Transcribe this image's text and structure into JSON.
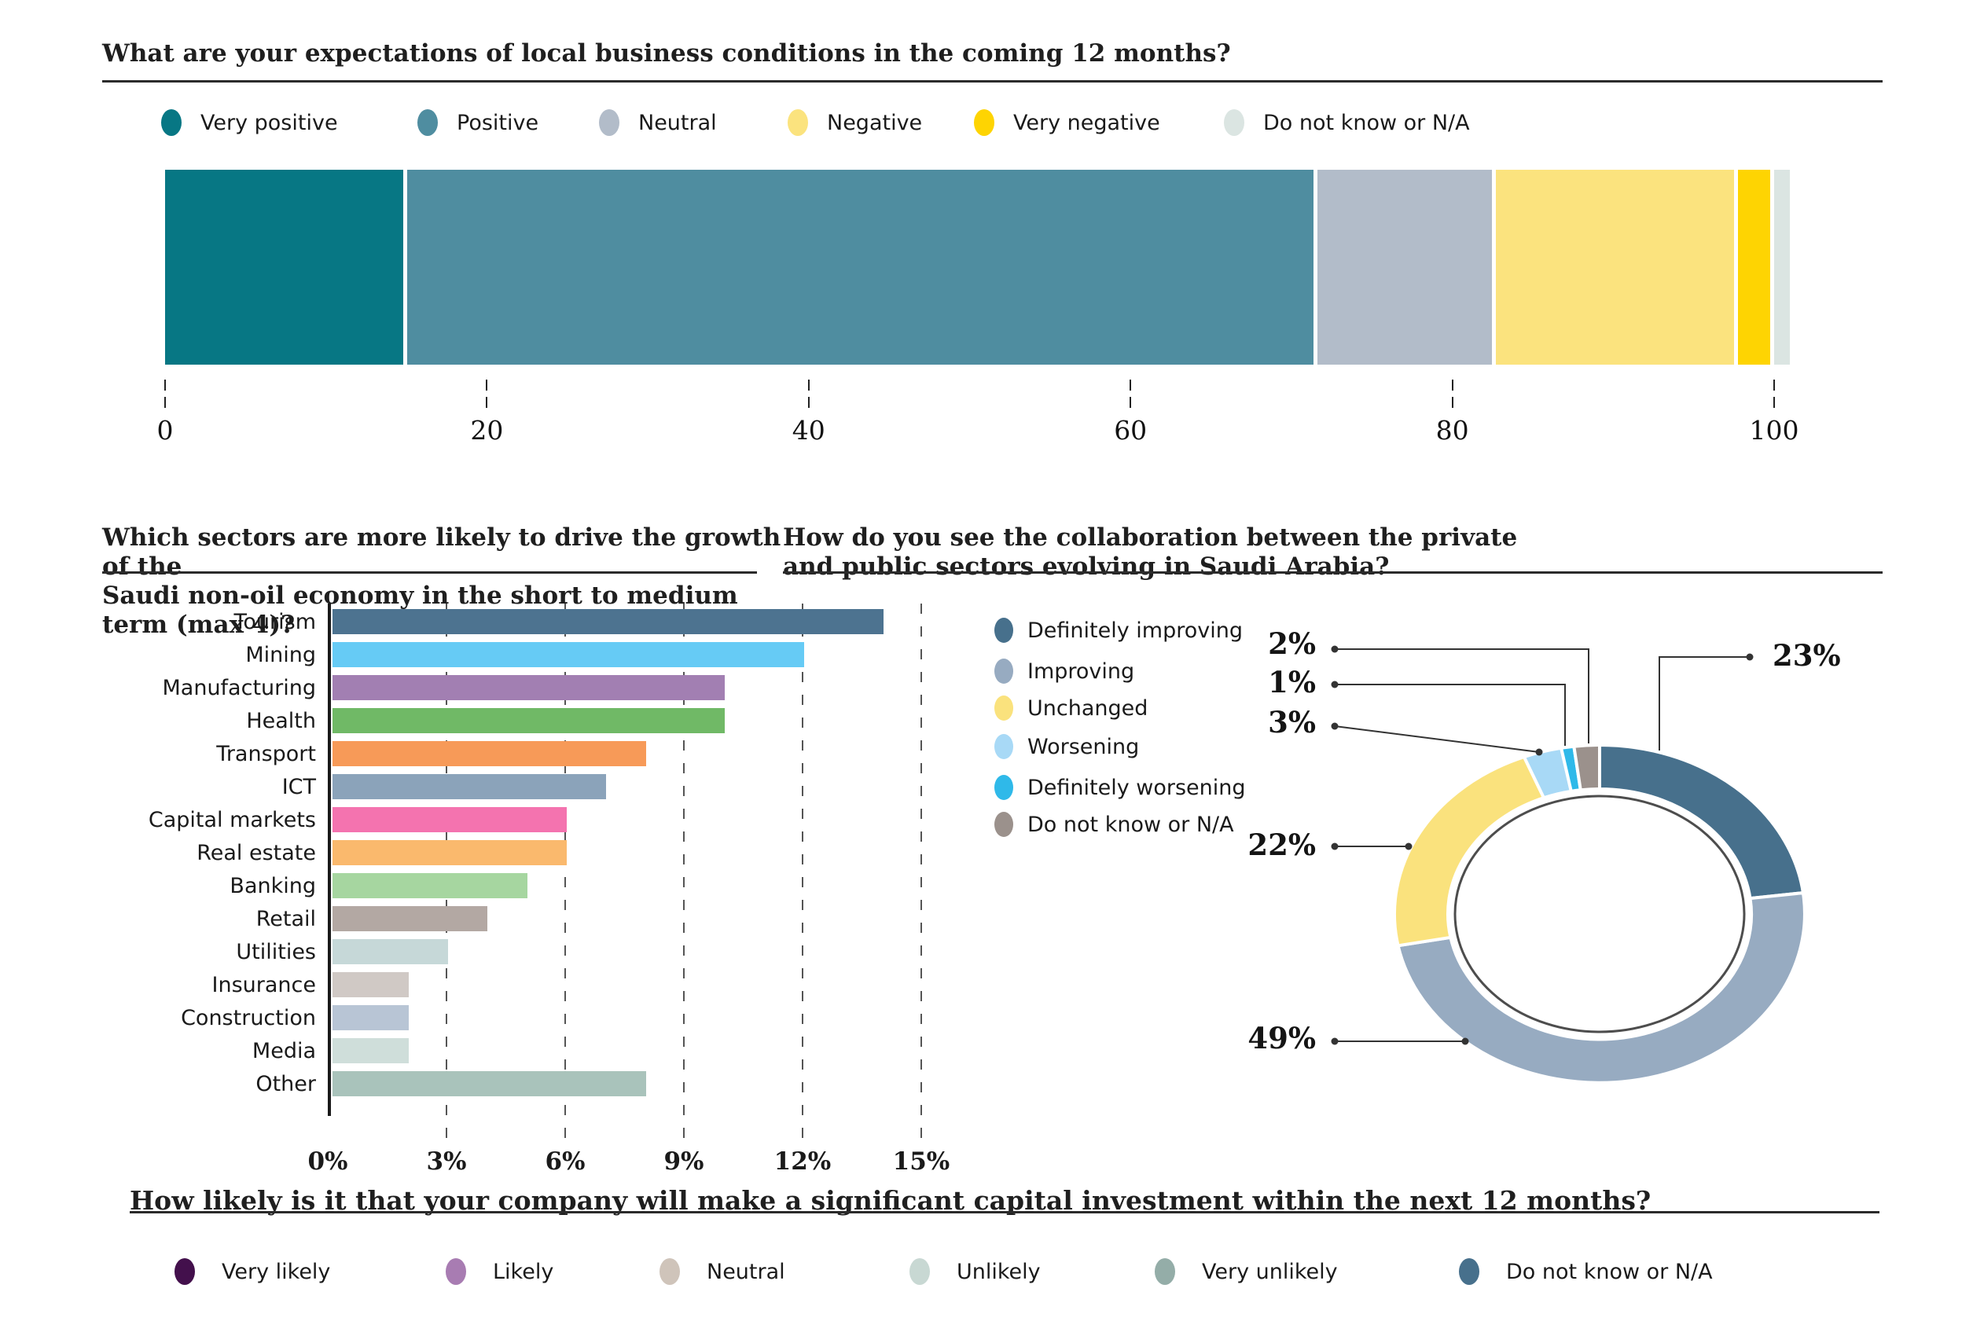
{
  "accent_colors": {
    "rule": "#2b2b2b",
    "axis": "#1a1a1a",
    "leader_line": "#333333"
  },
  "chart_data": [
    {
      "type": "bar",
      "subtype": "stacked_horizontal",
      "title": "What are your expectations of local business conditions in the coming 12 months?",
      "categories": [
        "Very positive",
        "Positive",
        "Neutral",
        "Negative",
        "Very negative",
        "Do not know or N/A"
      ],
      "values": [
        15,
        57,
        11,
        15,
        2,
        1
      ],
      "colors": [
        "#077784",
        "#4f8da0",
        "#b2bcc9",
        "#fbe37e",
        "#fed402",
        "#dbe5e2"
      ],
      "xlim": [
        0,
        100
      ],
      "x_ticks": [
        "0",
        "20",
        "40",
        "60",
        "80",
        "100"
      ],
      "legend_position": "top",
      "grid": false
    },
    {
      "type": "bar",
      "subtype": "horizontal",
      "title": "Which sectors are more likely to drive the growth of the\nSaudi non-oil economy in the short to medium term (max 4)?",
      "categories": [
        "Tourism",
        "Mining",
        "Manufacturing",
        "Health",
        "Transport",
        "ICT",
        "Capital markets",
        "Real estate",
        "Banking",
        "Retail",
        "Utilities",
        "Insurance",
        "Construction",
        "Media",
        "Other"
      ],
      "values": [
        14,
        12,
        10,
        10,
        8,
        7,
        6,
        6,
        5,
        4,
        3,
        2,
        2,
        2,
        8
      ],
      "colors": [
        "#4d7390",
        "#66cbf5",
        "#a27fb2",
        "#70b966",
        "#f79a58",
        "#8ba3ba",
        "#f473af",
        "#fab96d",
        "#a6d6a0",
        "#b3a8a3",
        "#c6d8d8",
        "#d0c9c5",
        "#b8c5d5",
        "#cfdeda",
        "#a9c3bb"
      ],
      "xlim": [
        0,
        15
      ],
      "x_ticks": [
        "0%",
        "3%",
        "6%",
        "9%",
        "12%",
        "15%"
      ],
      "x_tick_values": [
        0,
        3,
        6,
        9,
        12,
        15
      ],
      "ylabel": "",
      "xlabel": "",
      "grid": "dashed_vertical"
    },
    {
      "type": "pie",
      "subtype": "donut",
      "title": "How do you see the collaboration between the private\nand public sectors evolving in Saudi Arabia?",
      "segments": [
        {
          "label": "Definitely improving",
          "value": 23,
          "color": "#47708c"
        },
        {
          "label": "Improving",
          "value": 49,
          "color": "#97abc1"
        },
        {
          "label": "Unchanged",
          "value": 22,
          "color": "#fae27d"
        },
        {
          "label": "Worsening",
          "value": 3,
          "color": "#a8d9f6"
        },
        {
          "label": "Definitely worsening",
          "value": 1,
          "color": "#2fb9e9"
        },
        {
          "label": "Do not know or N/A",
          "value": 2,
          "color": "#9b918c"
        }
      ],
      "callout_labels": [
        "23%",
        "49%",
        "22%",
        "3%",
        "1%",
        "2%"
      ],
      "legend_position": "left",
      "start_angle_deg": 0,
      "direction": "clockwise"
    },
    {
      "type": "legend_only",
      "title": "How likely is it that your company will make a significant capital investment within the next 12 months?",
      "categories": [
        "Very likely",
        "Likely",
        "Neutral",
        "Unlikely",
        "Very unlikely",
        "Do not know or N/A"
      ],
      "colors": [
        "#43104c",
        "#a87cb2",
        "#cfc4ba",
        "#c8d8d3",
        "#94ada8",
        "#47708c"
      ]
    }
  ]
}
